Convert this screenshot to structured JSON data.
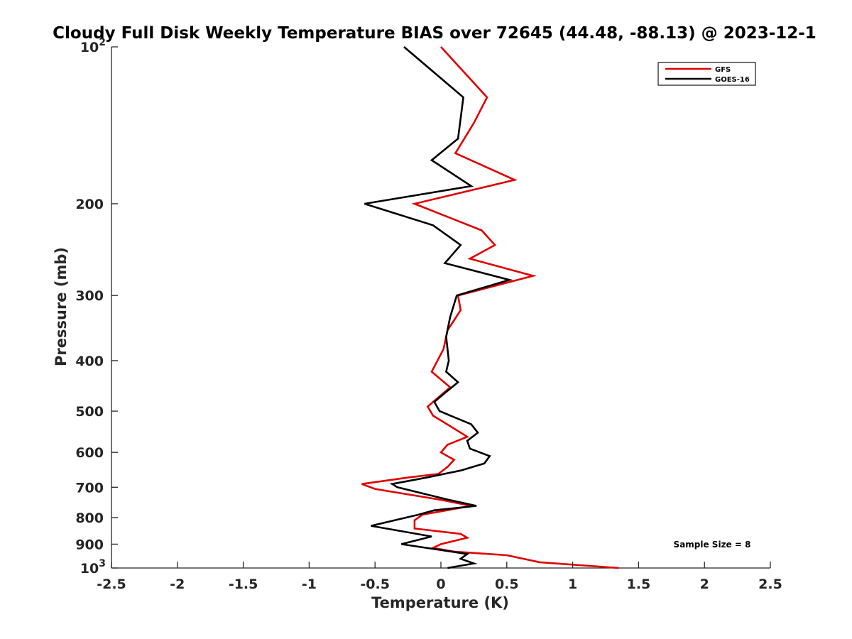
{
  "chart_data": {
    "type": "line",
    "title": "Cloudy Full Disk Weekly Temperature BIAS over 72645 (44.48, -88.13) @ 2023-12-1",
    "xlabel": "Temperature (K)",
    "ylabel": "Pressure (mb)",
    "xlim": [
      -2.5,
      2.5
    ],
    "ylim": [
      100,
      1000
    ],
    "y_scale": "log",
    "y_reversed": true,
    "x_ticks": [
      "-2.5",
      "-2",
      "-1.5",
      "-1",
      "-0.5",
      "0",
      "0.5",
      "1",
      "1.5",
      "2",
      "2.5"
    ],
    "y_ticks": [
      {
        "value": 100,
        "base": "10",
        "exp": "2",
        "label": ""
      },
      {
        "value": 200,
        "label": "200"
      },
      {
        "value": 300,
        "label": "300"
      },
      {
        "value": 400,
        "label": "400"
      },
      {
        "value": 500,
        "label": "500"
      },
      {
        "value": 600,
        "label": "600"
      },
      {
        "value": 700,
        "label": "700"
      },
      {
        "value": 800,
        "label": "800"
      },
      {
        "value": 900,
        "label": "900"
      },
      {
        "value": 1000,
        "base": "10",
        "exp": "3",
        "label": ""
      }
    ],
    "legend_position": "top-right",
    "annotation": "Sample Size = 8",
    "series": [
      {
        "name": "GFS",
        "color": "#e00000",
        "points": [
          [
            0.0,
            100
          ],
          [
            0.35,
            125
          ],
          [
            0.25,
            140
          ],
          [
            0.11,
            160
          ],
          [
            0.56,
            180
          ],
          [
            -0.2,
            200
          ],
          [
            0.31,
            225
          ],
          [
            0.41,
            240
          ],
          [
            0.22,
            255
          ],
          [
            0.7,
            275
          ],
          [
            0.13,
            300
          ],
          [
            0.15,
            320
          ],
          [
            0.05,
            350
          ],
          [
            0.02,
            380
          ],
          [
            -0.07,
            420
          ],
          [
            0.07,
            450
          ],
          [
            -0.1,
            490
          ],
          [
            -0.06,
            510
          ],
          [
            0.1,
            540
          ],
          [
            0.2,
            560
          ],
          [
            0.05,
            580
          ],
          [
            0.0,
            600
          ],
          [
            0.1,
            620
          ],
          [
            0.05,
            640
          ],
          [
            -0.02,
            660
          ],
          [
            -0.24,
            670
          ],
          [
            -0.6,
            690
          ],
          [
            -0.5,
            705
          ],
          [
            0.0,
            740
          ],
          [
            0.23,
            760
          ],
          [
            -0.14,
            790
          ],
          [
            -0.2,
            810
          ],
          [
            -0.2,
            840
          ],
          [
            0.15,
            860
          ],
          [
            0.2,
            875
          ],
          [
            0.0,
            900
          ],
          [
            -0.06,
            915
          ],
          [
            0.1,
            930
          ],
          [
            0.5,
            945
          ],
          [
            0.75,
            975
          ],
          [
            1.35,
            1000
          ]
        ]
      },
      {
        "name": "GOES-16",
        "color": "#000000",
        "points": [
          [
            -0.28,
            100
          ],
          [
            0.17,
            125
          ],
          [
            0.13,
            150
          ],
          [
            -0.07,
            165
          ],
          [
            0.23,
            185
          ],
          [
            -0.58,
            200
          ],
          [
            -0.06,
            220
          ],
          [
            0.15,
            240
          ],
          [
            0.03,
            260
          ],
          [
            0.52,
            280
          ],
          [
            0.12,
            300
          ],
          [
            0.07,
            330
          ],
          [
            0.04,
            360
          ],
          [
            0.06,
            400
          ],
          [
            0.04,
            420
          ],
          [
            0.13,
            440
          ],
          [
            -0.05,
            480
          ],
          [
            -0.01,
            500
          ],
          [
            0.23,
            530
          ],
          [
            0.28,
            550
          ],
          [
            0.2,
            570
          ],
          [
            0.22,
            590
          ],
          [
            0.37,
            610
          ],
          [
            0.33,
            630
          ],
          [
            0.15,
            650
          ],
          [
            -0.1,
            670
          ],
          [
            -0.37,
            690
          ],
          [
            -0.33,
            700
          ],
          [
            0.06,
            740
          ],
          [
            0.27,
            760
          ],
          [
            -0.05,
            775
          ],
          [
            -0.17,
            790
          ],
          [
            -0.53,
            830
          ],
          [
            -0.07,
            870
          ],
          [
            -0.3,
            900
          ],
          [
            0.2,
            940
          ],
          [
            0.15,
            960
          ],
          [
            0.25,
            980
          ],
          [
            0.05,
            1000
          ]
        ]
      }
    ]
  }
}
